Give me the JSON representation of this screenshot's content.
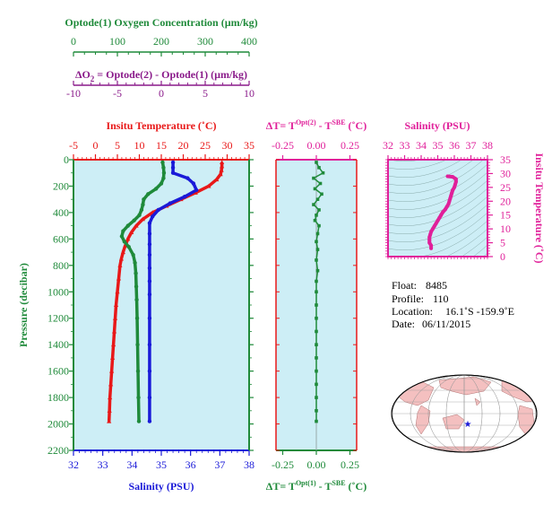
{
  "colors": {
    "green": "#1f8a3a",
    "purple": "#8a1a8a",
    "red": "#e81818",
    "blue": "#1a1ad8",
    "magenta": "#e0209a",
    "panel_bg": "#cdeef6",
    "land": "#f4c0c0",
    "star": "#1a1ad8"
  },
  "header": {
    "oxygen_label": "Optode(1) Oxygen Concentration (µm/kg)",
    "oxygen_ticks": [
      "0",
      "100",
      "200",
      "300",
      "400"
    ],
    "delta_o2_label_pre": "ΔO",
    "delta_o2_label_sub": "2",
    "delta_o2_label_post": " = Optode(2) - Optode(1)    (µm/kg)",
    "delta_o2_ticks": [
      "-10",
      "-5",
      "0",
      "5",
      "10"
    ]
  },
  "chart_data": [
    {
      "type": "line",
      "panel": "main",
      "top_axis_label": "Insitu Temperature (˚C)",
      "bottom_axis_label": "Salinity (PSU)",
      "ylabel": "Pressure (decibar)",
      "temperature_ticks": [
        "-5",
        "0",
        "5",
        "10",
        "15",
        "20",
        "25",
        "30",
        "35"
      ],
      "salinity_ticks": [
        "32",
        "33",
        "34",
        "35",
        "36",
        "37",
        "38"
      ],
      "pressure_ticks": [
        "0",
        "200",
        "400",
        "600",
        "800",
        "1000",
        "1200",
        "1400",
        "1600",
        "1800",
        "2000",
        "2200"
      ],
      "temperature_range": [
        -5,
        35
      ],
      "salinity_range": [
        32,
        38
      ],
      "oxygen_range": [
        0,
        400
      ],
      "ylim": [
        0,
        2200
      ],
      "series": [
        {
          "name": "Insitu Temperature",
          "axis": "temperature",
          "color": "red",
          "points": [
            [
              28.8,
              20
            ],
            [
              28.8,
              50
            ],
            [
              28.7,
              80
            ],
            [
              28.5,
              110
            ],
            [
              27.6,
              150
            ],
            [
              25.8,
              200
            ],
            [
              22.8,
              250
            ],
            [
              19.5,
              300
            ],
            [
              16.2,
              350
            ],
            [
              13,
              400
            ],
            [
              10.8,
              450
            ],
            [
              9.3,
              500
            ],
            [
              8.2,
              550
            ],
            [
              7.4,
              600
            ],
            [
              6.8,
              650
            ],
            [
              6.3,
              700
            ],
            [
              5.9,
              750
            ],
            [
              5.6,
              800
            ],
            [
              5.3,
              900
            ],
            [
              5,
              1000
            ],
            [
              4.7,
              1100
            ],
            [
              4.5,
              1200
            ],
            [
              4.3,
              1300
            ],
            [
              4.1,
              1400
            ],
            [
              3.9,
              1500
            ],
            [
              3.7,
              1600
            ],
            [
              3.5,
              1700
            ],
            [
              3.3,
              1800
            ],
            [
              3.2,
              1900
            ],
            [
              3.1,
              1980
            ]
          ]
        },
        {
          "name": "Salinity",
          "axis": "salinity",
          "color": "blue",
          "points": [
            [
              35.4,
              20
            ],
            [
              35.4,
              60
            ],
            [
              35.4,
              100
            ],
            [
              35.9,
              140
            ],
            [
              36.1,
              180
            ],
            [
              36.2,
              230
            ],
            [
              35.8,
              280
            ],
            [
              35.3,
              330
            ],
            [
              34.9,
              380
            ],
            [
              34.7,
              430
            ],
            [
              34.6,
              480
            ],
            [
              34.6,
              560
            ],
            [
              34.6,
              640
            ],
            [
              34.6,
              720
            ],
            [
              34.6,
              820
            ],
            [
              34.6,
              920
            ],
            [
              34.6,
              1020
            ],
            [
              34.6,
              1200
            ],
            [
              34.6,
              1400
            ],
            [
              34.6,
              1600
            ],
            [
              34.6,
              1800
            ],
            [
              34.6,
              1980
            ]
          ]
        },
        {
          "name": "Optode(1) Oxygen Concentration",
          "axis": "oxygen",
          "color": "green",
          "points": [
            [
              203,
              20
            ],
            [
              205,
              60
            ],
            [
              206,
              100
            ],
            [
              205,
              140
            ],
            [
              200,
              180
            ],
            [
              188,
              220
            ],
            [
              170,
              260
            ],
            [
              160,
              300
            ],
            [
              158,
              340
            ],
            [
              155,
              380
            ],
            [
              150,
              420
            ],
            [
              138,
              460
            ],
            [
              124,
              500
            ],
            [
              113,
              540
            ],
            [
              110,
              580
            ],
            [
              116,
              620
            ],
            [
              126,
              660
            ],
            [
              136,
              720
            ],
            [
              140,
              780
            ],
            [
              142,
              860
            ],
            [
              143,
              960
            ],
            [
              144,
              1060
            ],
            [
              145,
              1200
            ],
            [
              146,
              1400
            ],
            [
              147,
              1600
            ],
            [
              148,
              1800
            ],
            [
              149,
              1980
            ]
          ]
        }
      ]
    },
    {
      "type": "scatter",
      "panel": "delta_t",
      "top_axis_label": "ΔT= T^Opt(2) - T^SBE (˚C)",
      "bottom_axis_label": "ΔT= T^Opt(1) - T^SBE (˚C)",
      "x_ticks": [
        "-0.25",
        "0.00",
        "0.25"
      ],
      "xlim": [
        -0.3,
        0.3
      ],
      "ylim": [
        0,
        2200
      ],
      "series": [
        {
          "name": "Opt(2)",
          "color": "green",
          "points": [
            [
              0.0,
              20
            ],
            [
              0.02,
              60
            ],
            [
              0.05,
              100
            ],
            [
              -0.02,
              140
            ],
            [
              0.03,
              180
            ],
            [
              -0.01,
              220
            ],
            [
              0.04,
              260
            ],
            [
              0.01,
              300
            ],
            [
              -0.02,
              340
            ],
            [
              0.02,
              380
            ],
            [
              0.0,
              420
            ],
            [
              -0.01,
              460
            ],
            [
              0.02,
              500
            ],
            [
              0.01,
              560
            ],
            [
              0.0,
              620
            ],
            [
              0.01,
              680
            ],
            [
              0.0,
              760
            ],
            [
              0.01,
              840
            ],
            [
              0.0,
              920
            ],
            [
              0.0,
              1000
            ],
            [
              0.0,
              1100
            ],
            [
              0.0,
              1200
            ],
            [
              0.0,
              1300
            ],
            [
              0.0,
              1400
            ],
            [
              0.0,
              1500
            ],
            [
              0.0,
              1600
            ],
            [
              0.0,
              1700
            ],
            [
              0.0,
              1800
            ],
            [
              0.0,
              1900
            ],
            [
              0.0,
              1980
            ]
          ]
        }
      ]
    },
    {
      "type": "line",
      "panel": "ts",
      "top_axis_label": "Salinity (PSU)",
      "right_axis_label": "Insitu Temperature (˚C)",
      "salinity_ticks": [
        "32",
        "33",
        "34",
        "35",
        "36",
        "37",
        "38"
      ],
      "temperature_ticks": [
        "0",
        "5",
        "10",
        "15",
        "20",
        "25",
        "30",
        "35"
      ],
      "xlim": [
        32,
        38
      ],
      "ylim": [
        0,
        35
      ],
      "series": [
        {
          "name": "T-S",
          "color": "magenta",
          "points": [
            [
              34.6,
              3
            ],
            [
              34.6,
              4
            ],
            [
              34.5,
              5
            ],
            [
              34.5,
              6
            ],
            [
              34.5,
              7
            ],
            [
              34.55,
              8
            ],
            [
              34.6,
              9
            ],
            [
              34.7,
              10
            ],
            [
              34.8,
              11
            ],
            [
              34.9,
              12
            ],
            [
              35.0,
              13
            ],
            [
              35.1,
              14
            ],
            [
              35.2,
              15
            ],
            [
              35.3,
              16
            ],
            [
              35.45,
              17
            ],
            [
              35.55,
              18
            ],
            [
              35.65,
              19
            ],
            [
              35.7,
              20
            ],
            [
              35.75,
              21
            ],
            [
              35.8,
              22
            ],
            [
              35.85,
              23
            ],
            [
              35.9,
              24
            ],
            [
              36.0,
              25
            ],
            [
              36.05,
              26
            ],
            [
              36.1,
              27
            ],
            [
              36.1,
              28
            ],
            [
              35.9,
              28.8
            ],
            [
              35.6,
              29
            ]
          ]
        }
      ]
    }
  ],
  "info": {
    "float_label": "Float:",
    "float_value": "8485",
    "profile_label": "Profile:",
    "profile_value": "110",
    "location_label": "Location:",
    "location_value": "16.1˚S  -159.9˚E",
    "date_label": "Date:",
    "date_value": "06/11/2015"
  },
  "map": {
    "marker_icon": "star-icon"
  }
}
